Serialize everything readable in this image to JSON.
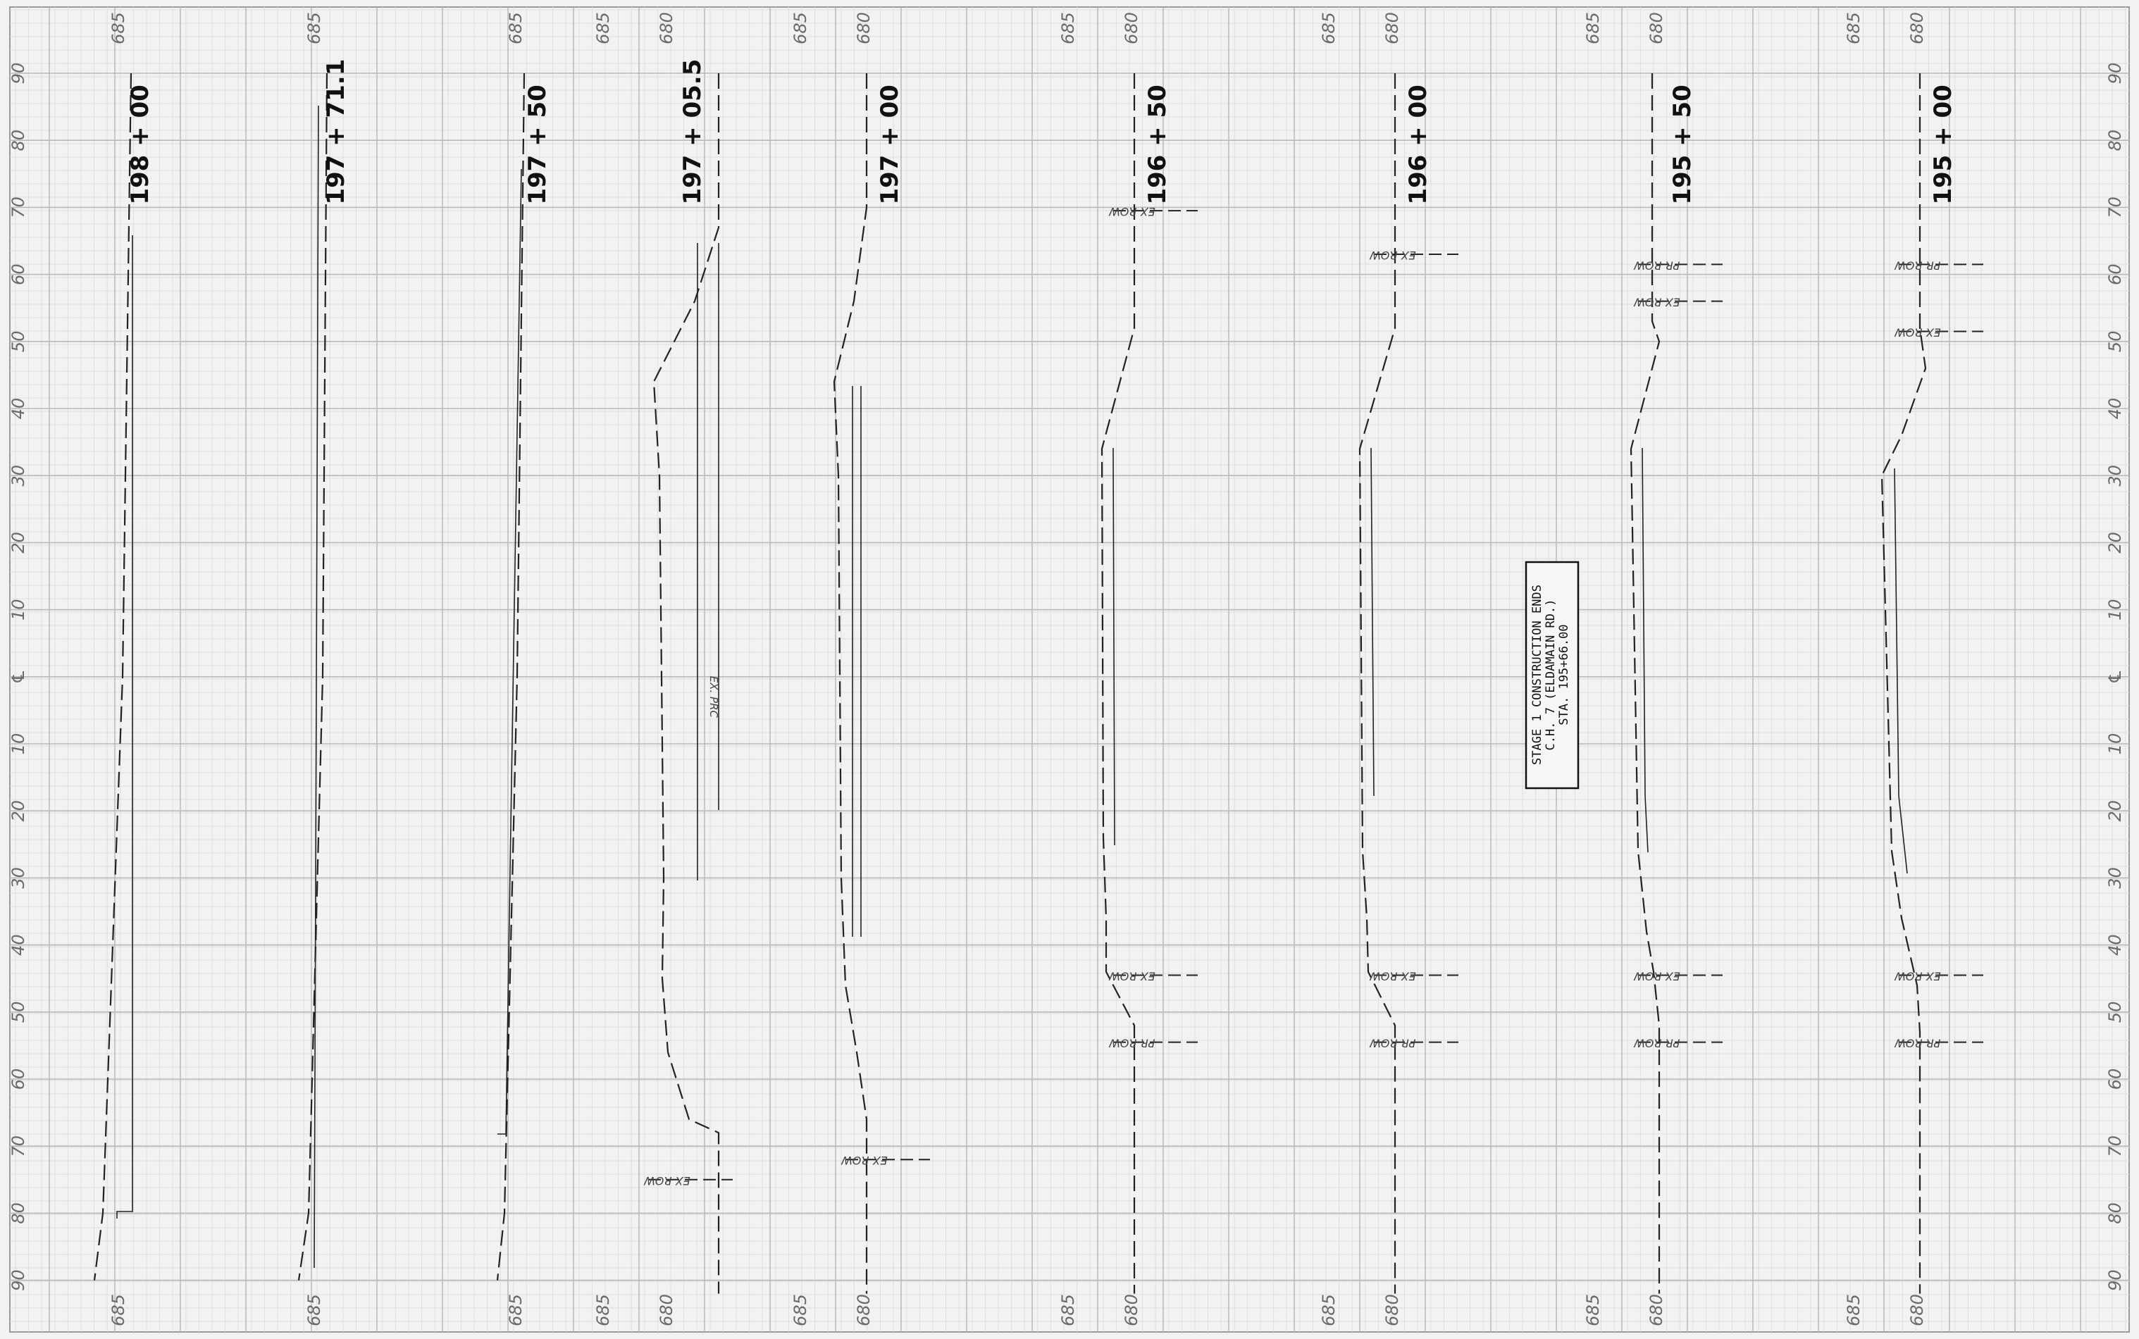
{
  "sheet": {
    "offsets_left": [
      "90",
      "80",
      "70",
      "60",
      "50",
      "40",
      "30",
      "20",
      "10",
      "℄",
      "10",
      "20",
      "30",
      "40",
      "50",
      "60",
      "70",
      "80",
      "90"
    ],
    "offsets_right": [
      "90",
      "80",
      "70",
      "60",
      "50",
      "40",
      "30",
      "20",
      "10",
      "℄",
      "10",
      "20",
      "30",
      "40",
      "50",
      "60",
      "70",
      "80",
      "90"
    ],
    "colors": {
      "paper": "#f2f2f2",
      "grid_major": "#b9b9b9",
      "grid_minor": "#dddddd",
      "line": "#222222",
      "text": "#111111"
    }
  },
  "sections": [
    {
      "station": "198 + 00",
      "elevations": [
        "685"
      ],
      "row_labels": []
    },
    {
      "station": "197 + 71.1",
      "elevations": [
        "685"
      ],
      "row_labels": []
    },
    {
      "station": "197 + 50",
      "elevations": [
        "685"
      ],
      "row_labels": []
    },
    {
      "station": "197 + 05.5",
      "elevations": [
        "685",
        "680"
      ],
      "row_labels": [
        "EX ROW"
      ],
      "inline_note": "EX. PRC"
    },
    {
      "station": "197 + 00",
      "elevations": [
        "685",
        "680"
      ],
      "row_labels": [
        "EX ROW"
      ]
    },
    {
      "station": "196 + 50",
      "elevations": [
        "685",
        "680"
      ],
      "row_labels": [
        "EX ROW",
        "EX ROW",
        "PR ROW"
      ]
    },
    {
      "station": "196 + 00",
      "elevations": [
        "685",
        "680"
      ],
      "row_labels": [
        "EX ROW",
        "EX ROW",
        "PR ROW"
      ]
    },
    {
      "station": "195 + 50",
      "elevations": [
        "685",
        "680"
      ],
      "row_labels": [
        "PR ROW",
        "EX ROW",
        "EX ROW",
        "PR ROW"
      ]
    },
    {
      "station": "195 + 00",
      "elevations": [
        "685",
        "680"
      ],
      "row_labels": [
        "PR ROW",
        "EX ROW",
        "EX ROW",
        "PR ROW"
      ]
    }
  ],
  "note": {
    "lines": [
      "STAGE 1 CONSTRUCTION ENDS",
      "C.H. 7 (ELDAMAIN RD.)",
      "STA. 195+66.00"
    ]
  }
}
